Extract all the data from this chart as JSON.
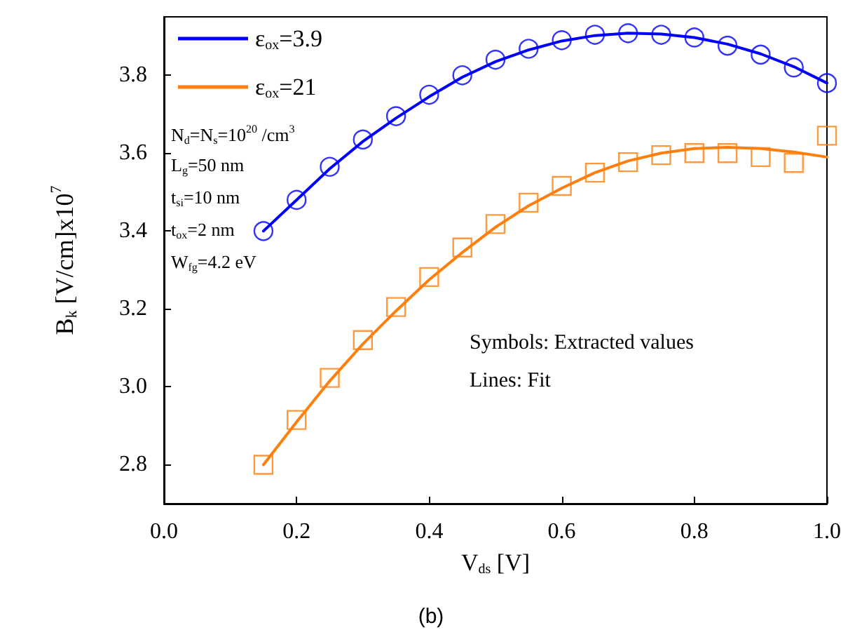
{
  "chart_data": {
    "type": "scatter",
    "xlabel": "V$_{ds}$ [V]",
    "ylabel": "B$_{k}$ [V/cm]x10$^{7}$",
    "xlim": [
      0,
      1
    ],
    "ylim": [
      2.7,
      3.95
    ],
    "xticks": [
      {
        "value": 0,
        "label": "0.0"
      },
      0.2,
      0.4,
      0.6,
      0.8,
      {
        "value": 1,
        "label": "1.0"
      }
    ],
    "yticks": [
      2.8,
      {
        "value": 3,
        "label": "3.0"
      },
      3.2,
      3.4,
      3.6,
      3.8
    ],
    "grid": false,
    "legend": "top left",
    "series": [
      {
        "marker": "circle",
        "color": "#0000ff",
        "x": [
          0.15,
          0.2,
          0.25,
          0.3,
          0.35,
          0.4,
          0.45,
          0.5,
          0.55,
          0.6,
          0.65,
          0.7,
          0.75,
          0.8,
          0.85,
          0.9,
          0.95,
          1.0
        ],
        "values": [
          3.4,
          3.48,
          3.565,
          3.635,
          3.695,
          3.75,
          3.8,
          3.84,
          3.868,
          3.89,
          3.904,
          3.908,
          3.904,
          3.897,
          3.876,
          3.853,
          3.82,
          3.78
        ]
      },
      {
        "marker": "square",
        "color": "#ff7f0e",
        "x": [
          0.15,
          0.2,
          0.25,
          0.3,
          0.35,
          0.4,
          0.45,
          0.5,
          0.55,
          0.6,
          0.65,
          0.7,
          0.75,
          0.8,
          0.85,
          0.9,
          0.95,
          1.0
        ],
        "values": [
          2.8,
          2.915,
          3.023,
          3.12,
          3.205,
          3.282,
          3.358,
          3.418,
          3.473,
          3.516,
          3.55,
          3.577,
          3.595,
          3.6,
          3.6,
          3.59,
          3.575,
          3.645
        ]
      },
      {
        "type": "line",
        "name": "ε$_{ox}$=3.9",
        "marker": "none",
        "line_style": "solid",
        "color": "#0000ff",
        "x": [
          0.15,
          0.2,
          0.25,
          0.3,
          0.35,
          0.4,
          0.45,
          0.5,
          0.55,
          0.6,
          0.65,
          0.7,
          0.75,
          0.8,
          0.85,
          0.9,
          0.95,
          1.0
        ],
        "values": [
          3.4,
          3.48,
          3.56,
          3.63,
          3.69,
          3.745,
          3.795,
          3.835,
          3.865,
          3.888,
          3.902,
          3.908,
          3.906,
          3.897,
          3.88,
          3.855,
          3.822,
          3.78
        ]
      },
      {
        "type": "line",
        "name": "ε$_{ox}$=21",
        "marker": "none",
        "line_style": "solid",
        "color": "#ff7f0e",
        "x": [
          0.15,
          0.2,
          0.25,
          0.3,
          0.35,
          0.4,
          0.45,
          0.5,
          0.55,
          0.6,
          0.65,
          0.7,
          0.75,
          0.8,
          0.85,
          0.9,
          0.95,
          1.0
        ],
        "values": [
          2.8,
          2.91,
          3.015,
          3.11,
          3.195,
          3.275,
          3.345,
          3.41,
          3.465,
          3.51,
          3.55,
          3.58,
          3.6,
          3.612,
          3.615,
          3.612,
          3.603,
          3.59
        ]
      }
    ],
    "annotations": [
      "N$_{d}$=N$_{s}$=10$^{20}$ /cm$^{3}$",
      "L$_{g}$=50 nm",
      "t$_{si}$=10 nm",
      "t$_{ox}$=2 nm",
      "W$_{fg}$=4.2 eV",
      "Symbols: Extracted values",
      "Lines: Fit",
      "(b)"
    ]
  }
}
